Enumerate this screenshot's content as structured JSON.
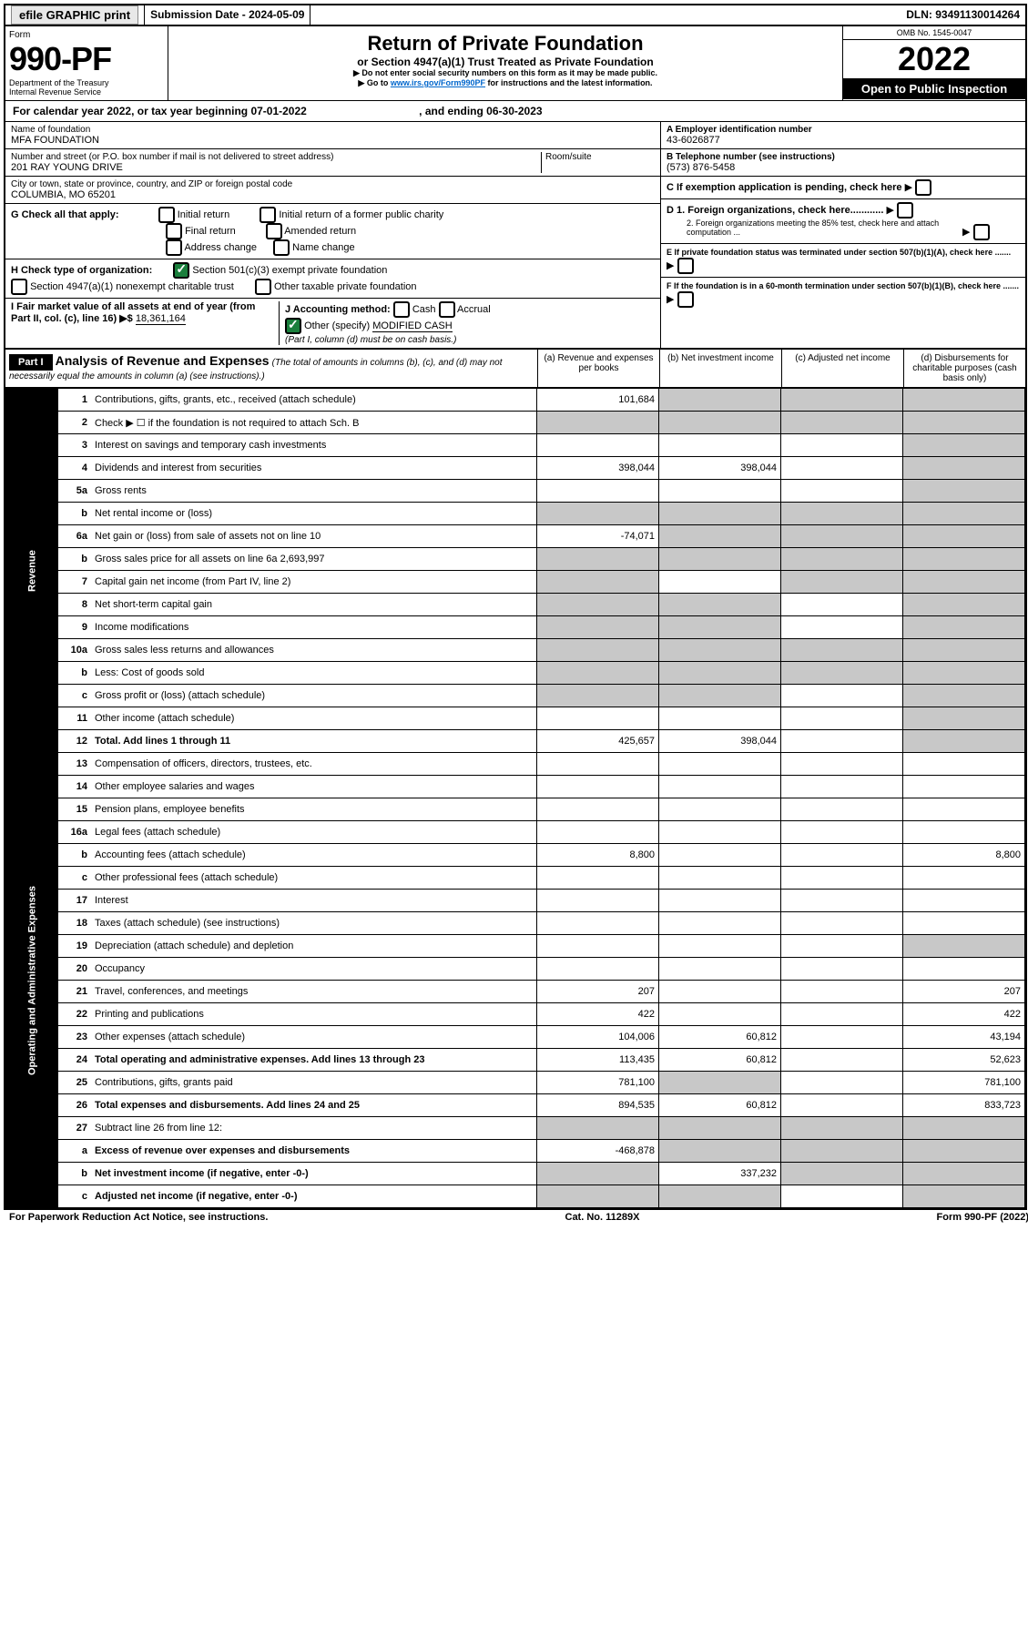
{
  "topbar": {
    "efile": "efile GRAPHIC print",
    "submission": "Submission Date - 2024-05-09",
    "dln": "DLN: 93491130014264"
  },
  "header": {
    "form_label": "Form",
    "form_number": "990-PF",
    "dept": "Department of the Treasury",
    "irs": "Internal Revenue Service",
    "title": "Return of Private Foundation",
    "subtitle": "or Section 4947(a)(1) Trust Treated as Private Foundation",
    "note1": "▶ Do not enter social security numbers on this form as it may be made public.",
    "note2_prefix": "▶ Go to ",
    "note2_link": "www.irs.gov/Form990PF",
    "note2_suffix": " for instructions and the latest information.",
    "omb": "OMB No. 1545-0047",
    "year": "2022",
    "open": "Open to Public Inspection"
  },
  "calyear": {
    "text_a": "For calendar year 2022, or tax year beginning 07-01-2022",
    "text_b": ", and ending 06-30-2023"
  },
  "id": {
    "name_lbl": "Name of foundation",
    "name": "MFA FOUNDATION",
    "addr_lbl": "Number and street (or P.O. box number if mail is not delivered to street address)",
    "addr": "201 RAY YOUNG DRIVE",
    "room_lbl": "Room/suite",
    "city_lbl": "City or town, state or province, country, and ZIP or foreign postal code",
    "city": "COLUMBIA, MO  65201",
    "ein_lbl": "A Employer identification number",
    "ein": "43-6026877",
    "tel_lbl": "B Telephone number (see instructions)",
    "tel": "(573) 876-5458",
    "c": "C If exemption application is pending, check here",
    "d1": "D 1. Foreign organizations, check here............",
    "d2": "2. Foreign organizations meeting the 85% test, check here and attach computation ...",
    "e": "E If private foundation status was terminated under section 507(b)(1)(A), check here .......",
    "f": "F If the foundation is in a 60-month termination under section 507(b)(1)(B), check here .......",
    "g_lbl": "G Check all that apply:",
    "g_opts": [
      "Initial return",
      "Initial return of a former public charity",
      "Final return",
      "Amended return",
      "Address change",
      "Name change"
    ],
    "h_lbl": "H Check type of organization:",
    "h1": "Section 501(c)(3) exempt private foundation",
    "h2": "Section 4947(a)(1) nonexempt charitable trust",
    "h3": "Other taxable private foundation",
    "i_lbl": "I Fair market value of all assets at end of year (from Part II, col. (c), line 16)",
    "i_val": "18,361,164",
    "j_lbl": "J Accounting method:",
    "j_cash": "Cash",
    "j_accrual": "Accrual",
    "j_other": "Other (specify)",
    "j_other_val": "MODIFIED CASH",
    "j_note": "(Part I, column (d) must be on cash basis.)"
  },
  "part1": {
    "label": "Part I",
    "title": "Analysis of Revenue and Expenses",
    "title_note": "(The total of amounts in columns (b), (c), and (d) may not necessarily equal the amounts in column (a) (see instructions).)",
    "cols": {
      "a": "(a) Revenue and expenses per books",
      "b": "(b) Net investment income",
      "c": "(c) Adjusted net income",
      "d": "(d) Disbursements for charitable purposes (cash basis only)"
    }
  },
  "sidelabels": {
    "revenue": "Revenue",
    "expenses": "Operating and Administrative Expenses"
  },
  "rows": [
    {
      "n": "1",
      "d": "Contributions, gifts, grants, etc., received (attach schedule)",
      "a": "101,684",
      "b_gray": true,
      "c_gray": true,
      "d_gray": true
    },
    {
      "n": "2",
      "d": "Check ▶ ☐ if the foundation is not required to attach Sch. B",
      "a_gray": true,
      "b_gray": true,
      "c_gray": true,
      "d_gray": true
    },
    {
      "n": "3",
      "d": "Interest on savings and temporary cash investments",
      "d_gray": true
    },
    {
      "n": "4",
      "d": "Dividends and interest from securities",
      "a": "398,044",
      "b": "398,044",
      "d_gray": true
    },
    {
      "n": "5a",
      "d": "Gross rents",
      "d_gray": true
    },
    {
      "n": "b",
      "d": "Net rental income or (loss)",
      "a_gray": true,
      "b_gray": true,
      "c_gray": true,
      "d_gray": true
    },
    {
      "n": "6a",
      "d": "Net gain or (loss) from sale of assets not on line 10",
      "a": "-74,071",
      "b_gray": true,
      "c_gray": true,
      "d_gray": true
    },
    {
      "n": "b",
      "d": "Gross sales price for all assets on line 6a",
      "inline": "2,693,997",
      "a_gray": true,
      "b_gray": true,
      "c_gray": true,
      "d_gray": true
    },
    {
      "n": "7",
      "d": "Capital gain net income (from Part IV, line 2)",
      "a_gray": true,
      "c_gray": true,
      "d_gray": true
    },
    {
      "n": "8",
      "d": "Net short-term capital gain",
      "a_gray": true,
      "b_gray": true,
      "d_gray": true
    },
    {
      "n": "9",
      "d": "Income modifications",
      "a_gray": true,
      "b_gray": true,
      "d_gray": true
    },
    {
      "n": "10a",
      "d": "Gross sales less returns and allowances",
      "a_gray": true,
      "b_gray": true,
      "c_gray": true,
      "d_gray": true
    },
    {
      "n": "b",
      "d": "Less: Cost of goods sold",
      "a_gray": true,
      "b_gray": true,
      "c_gray": true,
      "d_gray": true
    },
    {
      "n": "c",
      "d": "Gross profit or (loss) (attach schedule)",
      "a_gray": true,
      "b_gray": true,
      "d_gray": true
    },
    {
      "n": "11",
      "d": "Other income (attach schedule)",
      "d_gray": true
    },
    {
      "n": "12",
      "d": "Total. Add lines 1 through 11",
      "bold": true,
      "a": "425,657",
      "b": "398,044",
      "d_gray": true
    },
    {
      "n": "13",
      "d": "Compensation of officers, directors, trustees, etc."
    },
    {
      "n": "14",
      "d": "Other employee salaries and wages"
    },
    {
      "n": "15",
      "d": "Pension plans, employee benefits"
    },
    {
      "n": "16a",
      "d": "Legal fees (attach schedule)"
    },
    {
      "n": "b",
      "d": "Accounting fees (attach schedule)",
      "a": "8,800",
      "dcol": "8,800"
    },
    {
      "n": "c",
      "d": "Other professional fees (attach schedule)"
    },
    {
      "n": "17",
      "d": "Interest"
    },
    {
      "n": "18",
      "d": "Taxes (attach schedule) (see instructions)"
    },
    {
      "n": "19",
      "d": "Depreciation (attach schedule) and depletion",
      "d_gray": true
    },
    {
      "n": "20",
      "d": "Occupancy"
    },
    {
      "n": "21",
      "d": "Travel, conferences, and meetings",
      "a": "207",
      "dcol": "207"
    },
    {
      "n": "22",
      "d": "Printing and publications",
      "a": "422",
      "dcol": "422"
    },
    {
      "n": "23",
      "d": "Other expenses (attach schedule)",
      "a": "104,006",
      "b": "60,812",
      "dcol": "43,194"
    },
    {
      "n": "24",
      "d": "Total operating and administrative expenses. Add lines 13 through 23",
      "bold": true,
      "a": "113,435",
      "b": "60,812",
      "dcol": "52,623"
    },
    {
      "n": "25",
      "d": "Contributions, gifts, grants paid",
      "a": "781,100",
      "b_gray": true,
      "dcol": "781,100"
    },
    {
      "n": "26",
      "d": "Total expenses and disbursements. Add lines 24 and 25",
      "bold": true,
      "a": "894,535",
      "b": "60,812",
      "dcol": "833,723"
    },
    {
      "n": "27",
      "d": "Subtract line 26 from line 12:",
      "a_gray": true,
      "b_gray": true,
      "c_gray": true,
      "d_gray": true
    },
    {
      "n": "a",
      "d": "Excess of revenue over expenses and disbursements",
      "bold": true,
      "a": "-468,878",
      "b_gray": true,
      "c_gray": true,
      "d_gray": true
    },
    {
      "n": "b",
      "d": "Net investment income (if negative, enter -0-)",
      "bold": true,
      "a_gray": true,
      "b": "337,232",
      "c_gray": true,
      "d_gray": true
    },
    {
      "n": "c",
      "d": "Adjusted net income (if negative, enter -0-)",
      "bold": true,
      "a_gray": true,
      "b_gray": true,
      "d_gray": true
    }
  ],
  "footer": {
    "left": "For Paperwork Reduction Act Notice, see instructions.",
    "mid": "Cat. No. 11289X",
    "right": "Form 990-PF (2022)"
  }
}
